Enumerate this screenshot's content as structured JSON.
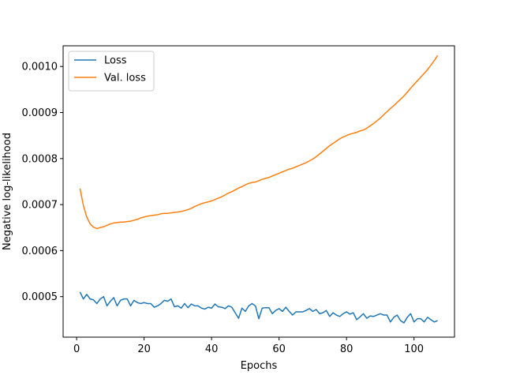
{
  "chart_data": {
    "type": "line",
    "title": "",
    "xlabel": "Epochs",
    "ylabel": "Negative log-likelihood",
    "xlim": [
      -4,
      112
    ],
    "ylim": [
      0.000412,
      0.001045
    ],
    "xticks": [
      0,
      20,
      40,
      60,
      80,
      100
    ],
    "xtick_labels": [
      "0",
      "20",
      "40",
      "60",
      "80",
      "100"
    ],
    "yticks": [
      0.0005,
      0.0006,
      0.0007,
      0.0008,
      0.0009,
      0.001
    ],
    "ytick_labels": [
      "0.0005",
      "0.0006",
      "0.0007",
      "0.0008",
      "0.0009",
      "0.0010"
    ],
    "grid": false,
    "legend": "top-left",
    "series": [
      {
        "name": "Loss",
        "color": "#1f77b4",
        "x": [
          1,
          2,
          3,
          4,
          5,
          6,
          7,
          8,
          9,
          10,
          11,
          12,
          13,
          14,
          15,
          16,
          17,
          18,
          19,
          20,
          21,
          22,
          23,
          24,
          25,
          26,
          27,
          28,
          29,
          30,
          31,
          32,
          33,
          34,
          35,
          36,
          37,
          38,
          39,
          40,
          41,
          42,
          43,
          44,
          45,
          46,
          47,
          48,
          49,
          50,
          51,
          52,
          53,
          54,
          55,
          56,
          57,
          58,
          59,
          60,
          61,
          62,
          63,
          64,
          65,
          66,
          67,
          68,
          69,
          70,
          71,
          72,
          73,
          74,
          75,
          76,
          77,
          78,
          79,
          80,
          81,
          82,
          83,
          84,
          85,
          86,
          87,
          88,
          89,
          90,
          91,
          92,
          93,
          94,
          95,
          96,
          97,
          98,
          99,
          100,
          101,
          102,
          103,
          104,
          105,
          106,
          107
        ],
        "values": [
          0.00051,
          0.000495,
          0.000505,
          0.000495,
          0.000493,
          0.000485,
          0.000495,
          0.0005,
          0.00048,
          0.00049,
          0.000498,
          0.00048,
          0.000492,
          0.000495,
          0.000495,
          0.00048,
          0.000492,
          0.000487,
          0.000485,
          0.000487,
          0.000485,
          0.000485,
          0.000477,
          0.00048,
          0.000485,
          0.000492,
          0.00049,
          0.000495,
          0.000478,
          0.00048,
          0.000475,
          0.000485,
          0.000476,
          0.000484,
          0.00048,
          0.00048,
          0.000475,
          0.000473,
          0.000477,
          0.000475,
          0.000484,
          0.000478,
          0.000477,
          0.000474,
          0.00048,
          0.000477,
          0.000465,
          0.000453,
          0.000475,
          0.000468,
          0.00048,
          0.000485,
          0.00048,
          0.000452,
          0.000475,
          0.000476,
          0.000476,
          0.000463,
          0.00047,
          0.000474,
          0.000468,
          0.000477,
          0.000468,
          0.00046,
          0.000467,
          0.000467,
          0.000467,
          0.00047,
          0.000474,
          0.000468,
          0.000472,
          0.000463,
          0.000465,
          0.00047,
          0.000457,
          0.000465,
          0.00046,
          0.000457,
          0.000463,
          0.000467,
          0.000462,
          0.000465,
          0.00045,
          0.000456,
          0.000463,
          0.000453,
          0.000458,
          0.000457,
          0.00046,
          0.000463,
          0.00046,
          0.00046,
          0.000445,
          0.000455,
          0.00046,
          0.000448,
          0.000443,
          0.000455,
          0.000463,
          0.000445,
          0.000452,
          0.000452,
          0.000445,
          0.000455,
          0.00045,
          0.000445,
          0.000448
        ]
      },
      {
        "name": "Val. loss",
        "color": "#ff7f0e",
        "x": [
          1,
          2,
          3,
          4,
          5,
          6,
          7,
          8,
          9,
          10,
          11,
          12,
          13,
          14,
          15,
          16,
          17,
          18,
          19,
          20,
          21,
          22,
          23,
          24,
          25,
          26,
          27,
          28,
          29,
          30,
          31,
          32,
          33,
          34,
          35,
          36,
          37,
          38,
          39,
          40,
          41,
          42,
          43,
          44,
          45,
          46,
          47,
          48,
          49,
          50,
          51,
          52,
          53,
          54,
          55,
          56,
          57,
          58,
          59,
          60,
          61,
          62,
          63,
          64,
          65,
          66,
          67,
          68,
          69,
          70,
          71,
          72,
          73,
          74,
          75,
          76,
          77,
          78,
          79,
          80,
          81,
          82,
          83,
          84,
          85,
          86,
          87,
          88,
          89,
          90,
          91,
          92,
          93,
          94,
          95,
          96,
          97,
          98,
          99,
          100,
          101,
          102,
          103,
          104,
          105,
          106,
          107
        ],
        "values": [
          0.000735,
          0.000698,
          0.000673,
          0.000658,
          0.000651,
          0.000648,
          0.00065,
          0.000652,
          0.000655,
          0.000658,
          0.00066,
          0.000661,
          0.000662,
          0.000662,
          0.000663,
          0.000664,
          0.000666,
          0.000668,
          0.000671,
          0.000673,
          0.000675,
          0.000676,
          0.000677,
          0.000678,
          0.00068,
          0.000681,
          0.000681,
          0.000682,
          0.000683,
          0.000684,
          0.000685,
          0.000687,
          0.000689,
          0.000692,
          0.000696,
          0.000699,
          0.000702,
          0.000704,
          0.000706,
          0.000708,
          0.000711,
          0.000714,
          0.000717,
          0.000721,
          0.000725,
          0.000728,
          0.000732,
          0.000736,
          0.000739,
          0.000743,
          0.000746,
          0.000748,
          0.000749,
          0.000752,
          0.000755,
          0.000757,
          0.000759,
          0.000762,
          0.000765,
          0.000768,
          0.000771,
          0.000774,
          0.000777,
          0.000779,
          0.000782,
          0.000785,
          0.000788,
          0.000791,
          0.000795,
          0.000799,
          0.000804,
          0.00081,
          0.000816,
          0.000822,
          0.000828,
          0.000833,
          0.000838,
          0.000843,
          0.000847,
          0.00085,
          0.000853,
          0.000855,
          0.000857,
          0.00086,
          0.000862,
          0.000866,
          0.000871,
          0.000876,
          0.000882,
          0.000888,
          0.000895,
          0.000902,
          0.000909,
          0.000915,
          0.000922,
          0.000929,
          0.000936,
          0.000944,
          0.000953,
          0.000961,
          0.000969,
          0.000977,
          0.000985,
          0.000993,
          0.001003,
          0.001013,
          0.001024
        ]
      }
    ]
  }
}
